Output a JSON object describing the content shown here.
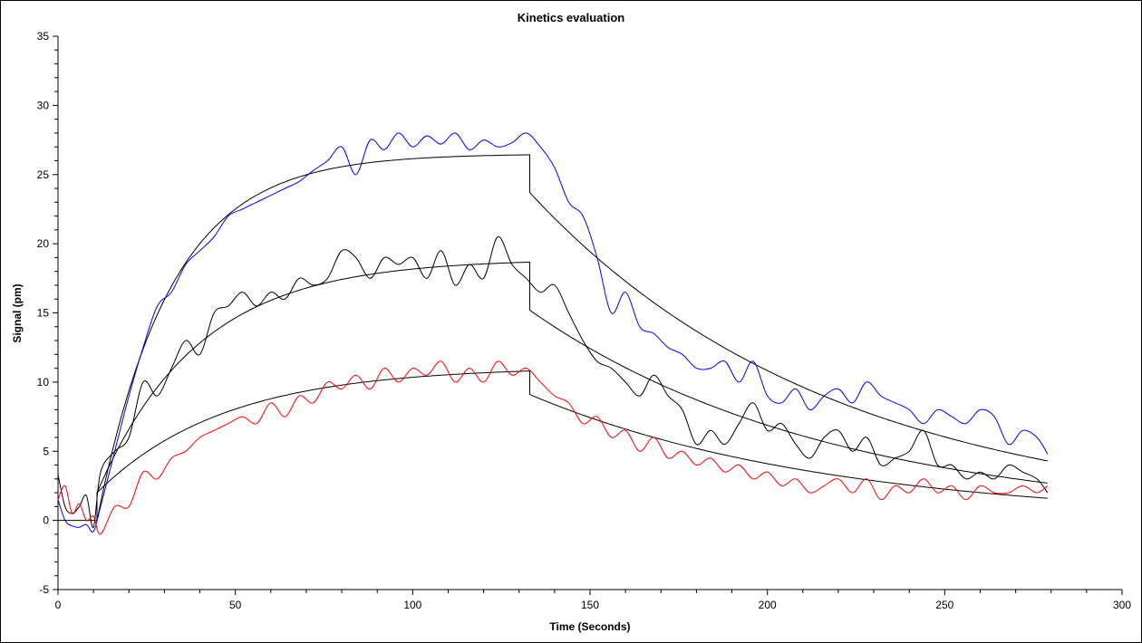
{
  "chart_data": {
    "type": "line",
    "title": "Kinetics evaluation",
    "xlabel": "Time (Seconds)",
    "ylabel": "Signal (pm)",
    "xlim": [
      0,
      300
    ],
    "ylim": [
      -5,
      35
    ],
    "x_major_ticks": [
      0,
      50,
      100,
      150,
      200,
      250,
      300
    ],
    "x_minor_step": 10,
    "y_major_ticks": [
      -5,
      0,
      5,
      10,
      15,
      20,
      25,
      30,
      35
    ],
    "y_minor_step": 1,
    "grid": false,
    "legend": "none",
    "x": [
      0,
      2,
      4,
      6,
      8,
      10,
      12,
      16,
      20,
      24,
      28,
      32,
      36,
      40,
      44,
      48,
      52,
      56,
      60,
      64,
      68,
      72,
      76,
      80,
      84,
      88,
      92,
      96,
      100,
      104,
      108,
      112,
      116,
      120,
      124,
      128,
      132,
      136,
      140,
      144,
      148,
      152,
      156,
      160,
      164,
      168,
      172,
      176,
      180,
      184,
      188,
      192,
      196,
      200,
      204,
      208,
      212,
      216,
      220,
      224,
      228,
      232,
      236,
      240,
      244,
      248,
      252,
      256,
      260,
      264,
      268,
      272,
      276,
      279
    ],
    "series": [
      {
        "name": "blue",
        "color": "#0000ff",
        "values": [
          1.5,
          0,
          -0.4,
          -0.5,
          -0.3,
          -0.8,
          1,
          5,
          9,
          12.5,
          15.5,
          16.5,
          18.5,
          19.5,
          20.5,
          22,
          22.5,
          23,
          23.5,
          24,
          24.5,
          25.3,
          26,
          27,
          25,
          27.5,
          26.8,
          28,
          27,
          27.8,
          27.2,
          28,
          26.8,
          27.5,
          27,
          27.3,
          28,
          27,
          25.5,
          23,
          22,
          19,
          15,
          16.5,
          14,
          13.5,
          12.5,
          12,
          11,
          11,
          11.5,
          10,
          11.5,
          9,
          8.5,
          9.5,
          8,
          9,
          9.5,
          8.5,
          10,
          9,
          8.5,
          8,
          7,
          8,
          7.5,
          7,
          8,
          7.5,
          5.5,
          6.5,
          6,
          4.8
        ]
      },
      {
        "name": "black",
        "color": "#000000",
        "values": [
          3.3,
          1,
          0.5,
          1,
          1.8,
          -0.5,
          3.5,
          5,
          6,
          10,
          9,
          11,
          13,
          12,
          15,
          15.5,
          16.5,
          15.5,
          16.5,
          16,
          17.5,
          17,
          17.5,
          19.5,
          19,
          17.5,
          19,
          18.5,
          19,
          17.5,
          19.5,
          17,
          18.5,
          17.5,
          20.5,
          18.5,
          17.5,
          16.5,
          17,
          15,
          13,
          11.5,
          11,
          10,
          9,
          10.5,
          9,
          8,
          5.5,
          6.5,
          5.5,
          7,
          8.5,
          6.5,
          7,
          5.5,
          4.5,
          6,
          6.5,
          5,
          6,
          4,
          4.5,
          5,
          6.5,
          4,
          4,
          3,
          3.5,
          3,
          4,
          3.5,
          3,
          2
        ]
      },
      {
        "name": "red",
        "color": "#ff0000",
        "values": [
          1.5,
          2.5,
          0.5,
          1.2,
          0,
          0.3,
          -1,
          1,
          1,
          3.5,
          3,
          4.5,
          5,
          6,
          6.5,
          7,
          7.5,
          7,
          8.5,
          7.5,
          9,
          8.5,
          10,
          9.5,
          10.5,
          9.5,
          11,
          10,
          11,
          10.5,
          11.5,
          10,
          11,
          10,
          11.5,
          10.5,
          11,
          10,
          9,
          8.5,
          7,
          7.5,
          6,
          6.5,
          5,
          6,
          4.5,
          5,
          4,
          4.5,
          3.5,
          4,
          3,
          3.5,
          2.5,
          3,
          2,
          2.5,
          3,
          2,
          3,
          1.5,
          2.5,
          2,
          3,
          2,
          2.5,
          1.5,
          2.5,
          2,
          2,
          2.5,
          2,
          2.5
        ]
      }
    ],
    "fits": {
      "color": "#000000",
      "baseline": {
        "t_start": 0,
        "t_end": 11,
        "value": 0
      },
      "curves": [
        {
          "name": "blue-fit",
          "assoc": {
            "t_start": 11,
            "t_end": 133,
            "y0": 0,
            "rmax": 26.5,
            "k": 0.0485
          },
          "dissoc": {
            "t_start": 133,
            "t_end": 279,
            "y0": 23.7,
            "kd": 0.01169
          }
        },
        {
          "name": "black-fit",
          "assoc": {
            "t_start": 11,
            "t_end": 133,
            "y0": 2,
            "rmax": 16.9,
            "k": 0.0353
          },
          "dissoc": {
            "t_start": 133,
            "t_end": 279,
            "y0": 15.2,
            "kd": 0.01184
          }
        },
        {
          "name": "red-fit",
          "assoc": {
            "t_start": 11,
            "t_end": 133,
            "y0": 2,
            "rmax": 9.1,
            "k": 0.028
          },
          "dissoc": {
            "t_start": 133,
            "t_end": 279,
            "y0": 9.1,
            "kd": 0.0119
          }
        }
      ]
    }
  }
}
